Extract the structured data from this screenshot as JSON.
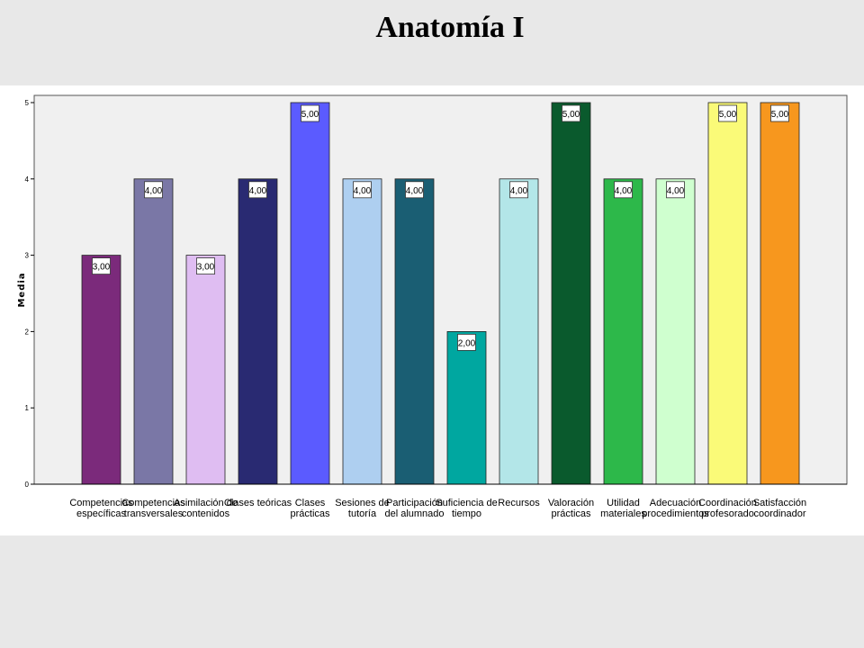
{
  "slide": {
    "title": "Anatomía I"
  },
  "chart_data": {
    "type": "bar",
    "title": "",
    "xlabel": "",
    "ylabel": "Media",
    "ylim": [
      0,
      5
    ],
    "yticks": [
      "0",
      "1",
      "2",
      "3",
      "4",
      "5"
    ],
    "grid": false,
    "categories": [
      [
        "Competencias",
        "específicas"
      ],
      [
        "Competencias",
        "transversales"
      ],
      [
        "Asimilación de",
        "contenidos"
      ],
      [
        "Clases teóricas"
      ],
      [
        "Clases",
        "prácticas"
      ],
      [
        "Sesiones de",
        "tutoría"
      ],
      [
        "Participación",
        "del alumnado"
      ],
      [
        "Suficiencia de",
        "tiempo"
      ],
      [
        "Recursos"
      ],
      [
        "Valoración",
        "prácticas"
      ],
      [
        "Utilidad",
        "materiales"
      ],
      [
        "Adecuación",
        "procedimientos"
      ],
      [
        "Coordinación",
        "profesorado"
      ],
      [
        "Satisfacción",
        "coordinador"
      ]
    ],
    "values": [
      3,
      4,
      3,
      4,
      5,
      4,
      4,
      2,
      4,
      5,
      4,
      4,
      5,
      5
    ],
    "value_labels": [
      "3,00",
      "4,00",
      "3,00",
      "4,00",
      "5,00",
      "4,00",
      "4,00",
      "2,00",
      "4,00",
      "5,00",
      "4,00",
      "4,00",
      "5,00",
      "5,00"
    ],
    "colors": [
      "#7b2a7b",
      "#7a77a6",
      "#dfbdf2",
      "#292a72",
      "#5b5bff",
      "#aecff0",
      "#1a5e73",
      "#00a7a0",
      "#b3e6e8",
      "#0a5a2d",
      "#2db84a",
      "#cfffcf",
      "#fafa78",
      "#f7971e"
    ],
    "plot_background": "#f0f0f0"
  }
}
